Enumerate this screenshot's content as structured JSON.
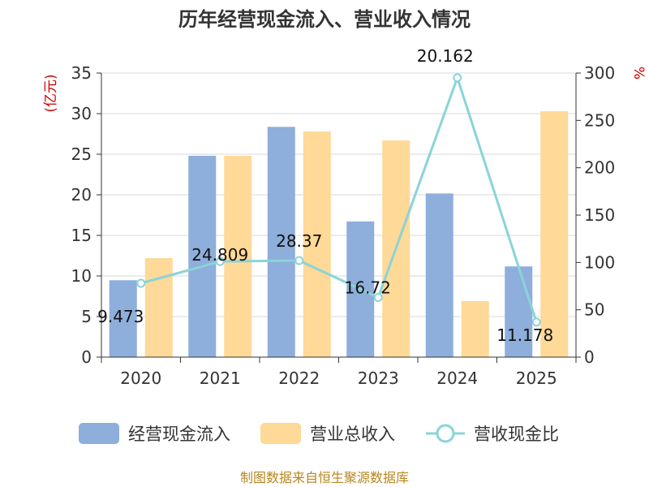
{
  "chart_data": {
    "type": "bar",
    "title": "历年经营现金流入、营业收入情况",
    "categories": [
      "2020",
      "2021",
      "2022",
      "2023",
      "2024",
      "2025"
    ],
    "series": [
      {
        "name": "经营现金流入",
        "type": "bar",
        "axis": "left",
        "color": "#8eaedb",
        "values": [
          9.473,
          24.809,
          28.37,
          16.72,
          20.162,
          11.178
        ]
      },
      {
        "name": "营业总收入",
        "type": "bar",
        "axis": "left",
        "color": "#fed997",
        "values": [
          12.2,
          24.8,
          27.8,
          26.7,
          6.9,
          30.3
        ]
      },
      {
        "name": "营收现金比",
        "type": "line",
        "axis": "right",
        "color": "#8ad4d8",
        "values": [
          78,
          101,
          102,
          63,
          295,
          37
        ]
      }
    ],
    "data_labels": [
      "9.473",
      "24.809",
      "28.37",
      "16.72",
      "20.162",
      "11.178"
    ],
    "y_left": {
      "unit": "(亿元)",
      "min": 0,
      "max": 35,
      "ticks": [
        0,
        5,
        10,
        15,
        20,
        25,
        30,
        35
      ]
    },
    "y_right": {
      "unit": "%",
      "min": 0,
      "max": 300,
      "ticks": [
        0,
        50,
        100,
        150,
        200,
        250,
        300
      ]
    },
    "grid": true,
    "legend_position": "bottom"
  },
  "source": "制图数据来自恒生聚源数据库"
}
